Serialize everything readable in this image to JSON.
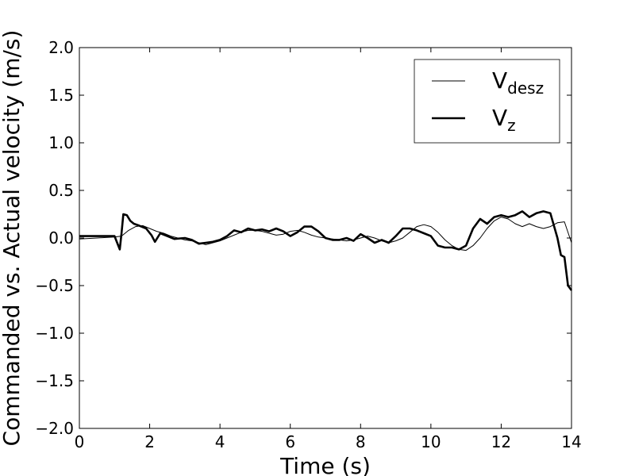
{
  "chart_data": {
    "type": "line",
    "xlabel": "Time (s)",
    "ylabel": "Commanded vs. Actual velocity (m/s)",
    "xlim": [
      0,
      14
    ],
    "ylim": [
      -2.0,
      2.0
    ],
    "x_ticks": [
      0,
      2,
      4,
      6,
      8,
      10,
      12,
      14
    ],
    "x_tick_labels": [
      "0",
      "2",
      "4",
      "6",
      "8",
      "10",
      "12",
      "14"
    ],
    "y_ticks": [
      2.0,
      1.5,
      1.0,
      0.5,
      0.0,
      -0.5,
      -1.0,
      -1.5,
      -2.0
    ],
    "y_tick_labels": [
      "2.0",
      "1.5",
      "1.0",
      "0.5",
      "0.0",
      "−0.5",
      "−1.0",
      "−1.5",
      "−2.0"
    ],
    "grid": false,
    "legend_position": "top-right",
    "series": [
      {
        "name": "V",
        "name_subscript": "desz",
        "color": "#000000",
        "line_style": "thin",
        "x": [
          0,
          0.5,
          1.0,
          1.2,
          1.4,
          1.6,
          1.8,
          2.0,
          2.2,
          2.4,
          2.6,
          2.8,
          3.0,
          3.2,
          3.4,
          3.6,
          3.8,
          4.0,
          4.2,
          4.4,
          4.6,
          4.8,
          5.0,
          5.2,
          5.4,
          5.6,
          5.8,
          6.0,
          6.2,
          6.4,
          6.6,
          6.8,
          7.0,
          7.2,
          7.4,
          7.6,
          7.8,
          8.0,
          8.2,
          8.4,
          8.6,
          8.8,
          9.0,
          9.2,
          9.4,
          9.6,
          9.8,
          10.0,
          10.2,
          10.4,
          10.6,
          10.8,
          11.0,
          11.2,
          11.4,
          11.6,
          11.8,
          12.0,
          12.2,
          12.4,
          12.6,
          12.8,
          13.0,
          13.2,
          13.4,
          13.6,
          13.8,
          14.0
        ],
        "y": [
          -0.01,
          0.0,
          0.01,
          0.02,
          0.08,
          0.12,
          0.13,
          0.1,
          0.07,
          0.05,
          0.02,
          0.0,
          -0.02,
          -0.03,
          -0.05,
          -0.07,
          -0.05,
          -0.03,
          0.0,
          0.03,
          0.06,
          0.08,
          0.08,
          0.07,
          0.05,
          0.03,
          0.04,
          0.07,
          0.08,
          0.06,
          0.03,
          0.01,
          0.0,
          -0.01,
          -0.02,
          -0.03,
          -0.02,
          0.0,
          0.02,
          0.0,
          -0.03,
          -0.05,
          -0.03,
          0.0,
          0.06,
          0.12,
          0.14,
          0.12,
          0.06,
          -0.02,
          -0.08,
          -0.12,
          -0.13,
          -0.08,
          0.0,
          0.1,
          0.18,
          0.22,
          0.2,
          0.15,
          0.12,
          0.15,
          0.12,
          0.1,
          0.12,
          0.16,
          0.17,
          -0.05
        ]
      },
      {
        "name": "V",
        "name_subscript": "z",
        "color": "#000000",
        "line_style": "thick",
        "x": [
          0,
          0.5,
          1.0,
          1.15,
          1.2,
          1.25,
          1.35,
          1.45,
          1.55,
          1.7,
          1.9,
          2.05,
          2.15,
          2.3,
          2.5,
          2.7,
          3.0,
          3.2,
          3.4,
          3.6,
          3.8,
          4.0,
          4.2,
          4.4,
          4.6,
          4.8,
          5.0,
          5.2,
          5.4,
          5.6,
          5.8,
          6.0,
          6.2,
          6.4,
          6.6,
          6.8,
          7.0,
          7.2,
          7.4,
          7.6,
          7.8,
          8.0,
          8.2,
          8.4,
          8.6,
          8.8,
          9.0,
          9.2,
          9.4,
          9.6,
          9.8,
          10.0,
          10.2,
          10.4,
          10.6,
          10.8,
          11.0,
          11.2,
          11.4,
          11.6,
          11.8,
          12.0,
          12.2,
          12.4,
          12.6,
          12.8,
          13.0,
          13.2,
          13.4,
          13.6,
          13.7,
          13.8,
          13.9,
          14.0
        ],
        "y": [
          0.02,
          0.02,
          0.02,
          -0.12,
          0.05,
          0.25,
          0.24,
          0.18,
          0.15,
          0.13,
          0.1,
          0.03,
          -0.04,
          0.05,
          0.02,
          -0.01,
          0.0,
          -0.02,
          -0.06,
          -0.05,
          -0.04,
          -0.02,
          0.02,
          0.08,
          0.06,
          0.1,
          0.08,
          0.09,
          0.07,
          0.1,
          0.07,
          0.02,
          0.06,
          0.12,
          0.12,
          0.07,
          0.0,
          -0.02,
          -0.02,
          0.0,
          -0.03,
          0.04,
          0.0,
          -0.05,
          -0.02,
          -0.05,
          0.02,
          0.1,
          0.1,
          0.08,
          0.05,
          0.02,
          -0.08,
          -0.1,
          -0.1,
          -0.12,
          -0.08,
          0.1,
          0.2,
          0.15,
          0.22,
          0.24,
          0.22,
          0.24,
          0.28,
          0.22,
          0.26,
          0.28,
          0.26,
          0.0,
          -0.18,
          -0.2,
          -0.5,
          -0.55
        ]
      }
    ]
  }
}
